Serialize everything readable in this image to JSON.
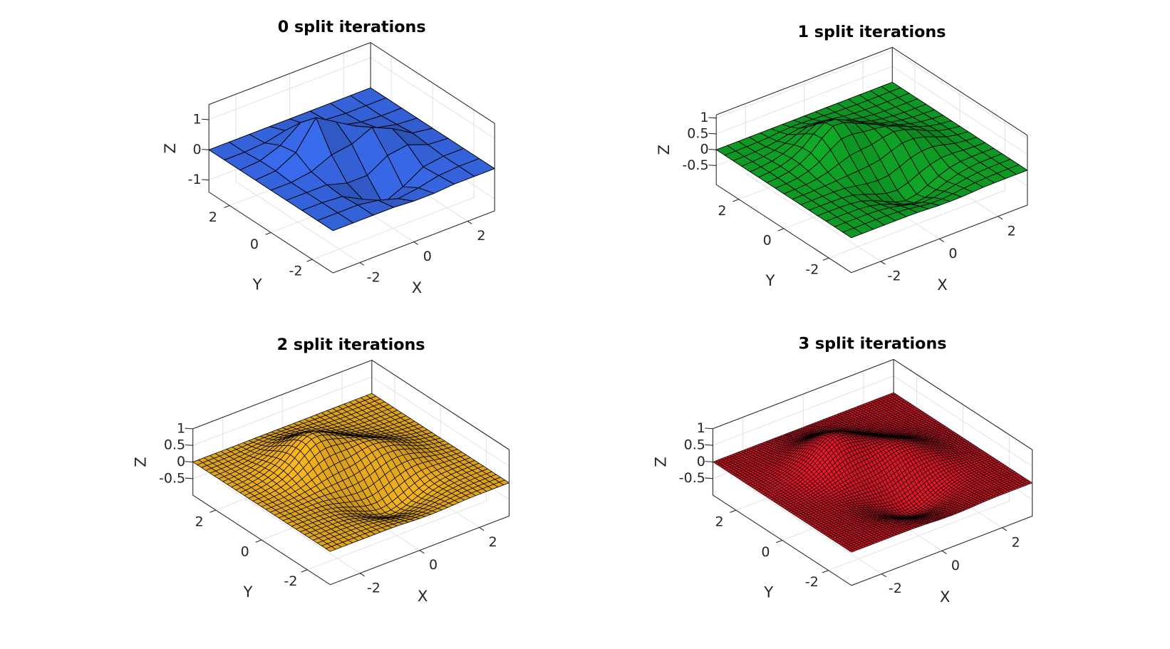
{
  "chart_data": [
    {
      "type": "surface",
      "title": "0 split iterations",
      "xlabel": "X",
      "ylabel": "Y",
      "zlabel": "Z",
      "color": "#3a6cf0",
      "subdivisions": 0,
      "grid": true,
      "x": [
        -3,
        -2.25,
        -1.5,
        -0.75,
        0,
        0.75,
        1.5,
        2.25,
        3
      ],
      "y": [
        -3,
        -2.25,
        -1.5,
        -0.75,
        0,
        0.75,
        1.5,
        2.25,
        3
      ],
      "z": [
        [
          0,
          0,
          0,
          0,
          -0.05,
          -0.05,
          0,
          0,
          0
        ],
        [
          0,
          0,
          0,
          -0.1,
          -0.3,
          -0.2,
          -0.05,
          0,
          0
        ],
        [
          0,
          0,
          -0.05,
          -0.4,
          -0.8,
          -0.5,
          -0.1,
          0,
          0
        ],
        [
          0,
          0,
          0,
          -0.2,
          -0.2,
          0.2,
          0.3,
          0.05,
          0
        ],
        [
          0,
          0,
          0.1,
          0.4,
          0.5,
          0.8,
          0.5,
          0.1,
          0
        ],
        [
          0,
          0.05,
          0.4,
          1.3,
          0.9,
          0.5,
          0.2,
          0.05,
          0
        ],
        [
          0,
          0.05,
          0.3,
          0.8,
          0.6,
          0.2,
          0.05,
          0,
          0
        ],
        [
          0,
          0,
          0.05,
          0.2,
          0.15,
          0.05,
          0,
          0,
          0
        ],
        [
          0,
          0,
          0,
          0,
          0,
          0,
          0,
          0,
          0
        ]
      ],
      "xlim": [
        -3,
        3
      ],
      "ylim": [
        -3,
        3
      ],
      "zlim": [
        -1.4,
        1.5
      ],
      "xticks": [
        -2,
        0,
        2
      ],
      "yticks": [
        -2,
        0,
        2
      ],
      "zticks": [
        -1,
        0,
        1
      ]
    },
    {
      "type": "surface",
      "title": "1 split iterations",
      "xlabel": "X",
      "ylabel": "Y",
      "zlabel": "Z",
      "color": "#10a828",
      "subdivisions": 1,
      "grid": true,
      "x": [
        -3,
        -2.25,
        -1.5,
        -0.75,
        0,
        0.75,
        1.5,
        2.25,
        3
      ],
      "y": [
        -3,
        -2.25,
        -1.5,
        -0.75,
        0,
        0.75,
        1.5,
        2.25,
        3
      ],
      "z": [
        [
          0,
          0,
          0,
          0,
          -0.05,
          -0.05,
          0,
          0,
          0
        ],
        [
          0,
          0,
          0,
          -0.1,
          -0.3,
          -0.2,
          -0.05,
          0,
          0
        ],
        [
          0,
          0,
          -0.05,
          -0.4,
          -0.8,
          -0.5,
          -0.1,
          0,
          0
        ],
        [
          0,
          0,
          0,
          -0.2,
          -0.2,
          0.2,
          0.3,
          0.05,
          0
        ],
        [
          0,
          0,
          0.1,
          0.4,
          0.5,
          0.8,
          0.5,
          0.1,
          0
        ],
        [
          0,
          0.05,
          0.4,
          1.3,
          0.9,
          0.5,
          0.2,
          0.05,
          0
        ],
        [
          0,
          0.05,
          0.3,
          0.8,
          0.6,
          0.2,
          0.05,
          0,
          0
        ],
        [
          0,
          0,
          0.05,
          0.2,
          0.15,
          0.05,
          0,
          0,
          0
        ],
        [
          0,
          0,
          0,
          0,
          0,
          0,
          0,
          0,
          0
        ]
      ],
      "xlim": [
        -3,
        3
      ],
      "ylim": [
        -3,
        3
      ],
      "zlim": [
        -1.1,
        1.1
      ],
      "xticks": [
        -2,
        0,
        2
      ],
      "yticks": [
        -2,
        0,
        2
      ],
      "zticks": [
        -0.5,
        0,
        0.5,
        1
      ]
    },
    {
      "type": "surface",
      "title": "2 split iterations",
      "xlabel": "X",
      "ylabel": "Y",
      "zlabel": "Z",
      "color": "#f5b41e",
      "subdivisions": 2,
      "grid": true,
      "x": [
        -3,
        -2.25,
        -1.5,
        -0.75,
        0,
        0.75,
        1.5,
        2.25,
        3
      ],
      "y": [
        -3,
        -2.25,
        -1.5,
        -0.75,
        0,
        0.75,
        1.5,
        2.25,
        3
      ],
      "z": [
        [
          0,
          0,
          0,
          0,
          -0.05,
          -0.05,
          0,
          0,
          0
        ],
        [
          0,
          0,
          0,
          -0.1,
          -0.3,
          -0.2,
          -0.05,
          0,
          0
        ],
        [
          0,
          0,
          -0.05,
          -0.4,
          -0.8,
          -0.5,
          -0.1,
          0,
          0
        ],
        [
          0,
          0,
          0,
          -0.2,
          -0.2,
          0.2,
          0.3,
          0.05,
          0
        ],
        [
          0,
          0,
          0.1,
          0.4,
          0.5,
          0.8,
          0.5,
          0.1,
          0
        ],
        [
          0,
          0.05,
          0.4,
          1.3,
          0.9,
          0.5,
          0.2,
          0.05,
          0
        ],
        [
          0,
          0.05,
          0.3,
          0.8,
          0.6,
          0.2,
          0.05,
          0,
          0
        ],
        [
          0,
          0,
          0.05,
          0.2,
          0.15,
          0.05,
          0,
          0,
          0
        ],
        [
          0,
          0,
          0,
          0,
          0,
          0,
          0,
          0,
          0
        ]
      ],
      "xlim": [
        -3,
        3
      ],
      "ylim": [
        -3,
        3
      ],
      "zlim": [
        -1,
        1
      ],
      "xticks": [
        -2,
        0,
        2
      ],
      "yticks": [
        -2,
        0,
        2
      ],
      "zticks": [
        -0.5,
        0,
        0.5,
        1
      ]
    },
    {
      "type": "surface",
      "title": "3 split iterations",
      "xlabel": "X",
      "ylabel": "Y",
      "zlabel": "Z",
      "color": "#e8182a",
      "subdivisions": 3,
      "grid": true,
      "x": [
        -3,
        -2.25,
        -1.5,
        -0.75,
        0,
        0.75,
        1.5,
        2.25,
        3
      ],
      "y": [
        -3,
        -2.25,
        -1.5,
        -0.75,
        0,
        0.75,
        1.5,
        2.25,
        3
      ],
      "z": [
        [
          0,
          0,
          0,
          0,
          -0.05,
          -0.05,
          0,
          0,
          0
        ],
        [
          0,
          0,
          0,
          -0.1,
          -0.3,
          -0.2,
          -0.05,
          0,
          0
        ],
        [
          0,
          0,
          -0.05,
          -0.4,
          -0.8,
          -0.5,
          -0.1,
          0,
          0
        ],
        [
          0,
          0,
          0,
          -0.2,
          -0.2,
          0.2,
          0.3,
          0.05,
          0
        ],
        [
          0,
          0,
          0.1,
          0.4,
          0.5,
          0.8,
          0.5,
          0.1,
          0
        ],
        [
          0,
          0.05,
          0.4,
          1.3,
          0.9,
          0.5,
          0.2,
          0.05,
          0
        ],
        [
          0,
          0.05,
          0.3,
          0.8,
          0.6,
          0.2,
          0.05,
          0,
          0
        ],
        [
          0,
          0,
          0.05,
          0.2,
          0.15,
          0.05,
          0,
          0,
          0
        ],
        [
          0,
          0,
          0,
          0,
          0,
          0,
          0,
          0,
          0
        ]
      ],
      "xlim": [
        -3,
        3
      ],
      "ylim": [
        -3,
        3
      ],
      "zlim": [
        -1,
        1
      ],
      "xticks": [
        -2,
        0,
        2
      ],
      "yticks": [
        -2,
        0,
        2
      ],
      "zticks": [
        -0.5,
        0,
        0.5,
        1
      ]
    }
  ]
}
